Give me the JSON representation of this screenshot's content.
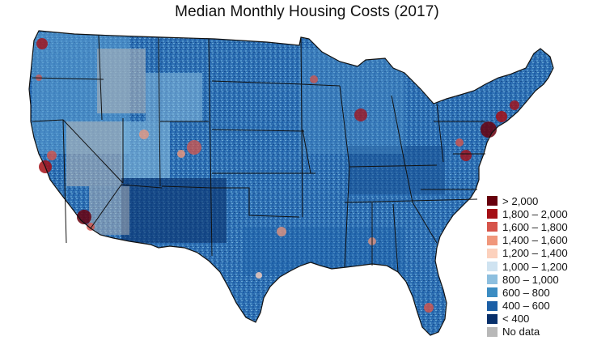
{
  "title": "Median Monthly Housing Costs (2017)",
  "legend": [
    {
      "label": "> 2,000",
      "color": "#67000d"
    },
    {
      "label": "1,800 – 2,000",
      "color": "#a50f15"
    },
    {
      "label": "1,600 – 1,800",
      "color": "#d6544a"
    },
    {
      "label": "1,400 – 1,600",
      "color": "#f0977b"
    },
    {
      "label": "1,200 – 1,400",
      "color": "#fcd1bd"
    },
    {
      "label": "1,000 – 1,200",
      "color": "#cfe3f1"
    },
    {
      "label": "800 – 1,000",
      "color": "#8dbfdf"
    },
    {
      "label": "600 – 800",
      "color": "#3b8cc2"
    },
    {
      "label": "400 – 600",
      "color": "#1b5fa6"
    },
    {
      "label": "< 400",
      "color": "#08306b"
    },
    {
      "label": "No data",
      "color": "#b8b8b8"
    }
  ]
}
